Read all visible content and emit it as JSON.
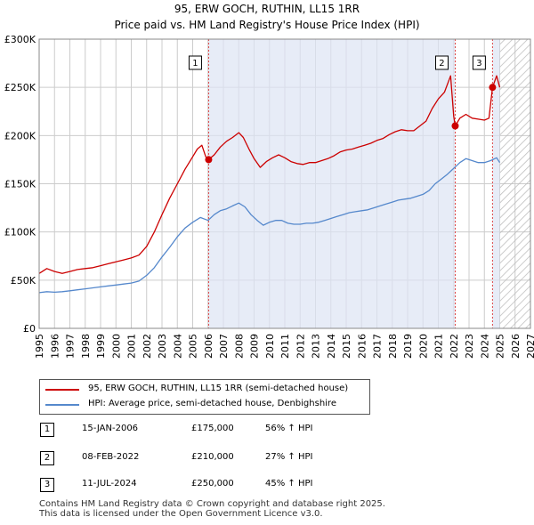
{
  "titles": {
    "line1": "95, ERW GOCH, RUTHIN, LL15 1RR",
    "line2": "Price paid vs. HM Land Registry's House Price Index (HPI)"
  },
  "chart_data": {
    "type": "line",
    "xlim": [
      1995,
      2027
    ],
    "ylim": [
      0,
      300000
    ],
    "y_ticks": [
      {
        "value": 0,
        "label": "£0"
      },
      {
        "value": 50000,
        "label": "£50K"
      },
      {
        "value": 100000,
        "label": "£100K"
      },
      {
        "value": 150000,
        "label": "£150K"
      },
      {
        "value": 200000,
        "label": "£200K"
      },
      {
        "value": 250000,
        "label": "£250K"
      },
      {
        "value": 300000,
        "label": "£300K"
      }
    ],
    "x_ticks": [
      "1995",
      "1996",
      "1997",
      "1998",
      "1999",
      "2000",
      "2001",
      "2002",
      "2003",
      "2004",
      "2005",
      "2006",
      "2007",
      "2008",
      "2009",
      "2010",
      "2011",
      "2012",
      "2013",
      "2014",
      "2015",
      "2016",
      "2017",
      "2018",
      "2019",
      "2020",
      "2021",
      "2022",
      "2023",
      "2024",
      "2025",
      "2026",
      "2027"
    ],
    "grid": true,
    "forecast_hatch_start": 2025.0,
    "series": [
      {
        "name": "95, ERW GOCH, RUTHIN, LL15 1RR (semi-detached house)",
        "color": "#cc0000",
        "points": [
          [
            1995.0,
            57000
          ],
          [
            1995.5,
            62000
          ],
          [
            1996.0,
            59000
          ],
          [
            1996.5,
            57000
          ],
          [
            1997.0,
            59000
          ],
          [
            1997.5,
            61000
          ],
          [
            1998.0,
            62000
          ],
          [
            1998.5,
            63000
          ],
          [
            1999.0,
            65000
          ],
          [
            1999.5,
            67000
          ],
          [
            2000.0,
            69000
          ],
          [
            2000.5,
            71000
          ],
          [
            2001.0,
            73000
          ],
          [
            2001.5,
            76000
          ],
          [
            2002.0,
            85000
          ],
          [
            2002.5,
            100000
          ],
          [
            2003.0,
            118000
          ],
          [
            2003.5,
            135000
          ],
          [
            2004.0,
            150000
          ],
          [
            2004.5,
            165000
          ],
          [
            2005.0,
            178000
          ],
          [
            2005.3,
            186000
          ],
          [
            2005.6,
            190000
          ],
          [
            2005.85,
            178000
          ],
          [
            2006.04,
            175000
          ],
          [
            2006.4,
            180000
          ],
          [
            2006.8,
            188000
          ],
          [
            2007.2,
            194000
          ],
          [
            2007.6,
            198000
          ],
          [
            2008.0,
            203000
          ],
          [
            2008.3,
            198000
          ],
          [
            2008.7,
            185000
          ],
          [
            2009.0,
            176000
          ],
          [
            2009.4,
            167000
          ],
          [
            2009.8,
            173000
          ],
          [
            2010.2,
            177000
          ],
          [
            2010.6,
            180000
          ],
          [
            2011.0,
            177000
          ],
          [
            2011.4,
            173000
          ],
          [
            2011.8,
            171000
          ],
          [
            2012.2,
            170000
          ],
          [
            2012.6,
            172000
          ],
          [
            2013.0,
            172000
          ],
          [
            2013.4,
            174000
          ],
          [
            2013.8,
            176000
          ],
          [
            2014.2,
            179000
          ],
          [
            2014.6,
            183000
          ],
          [
            2015.0,
            185000
          ],
          [
            2015.4,
            186000
          ],
          [
            2015.8,
            188000
          ],
          [
            2016.2,
            190000
          ],
          [
            2016.6,
            192000
          ],
          [
            2017.0,
            195000
          ],
          [
            2017.4,
            197000
          ],
          [
            2017.8,
            201000
          ],
          [
            2018.2,
            204000
          ],
          [
            2018.6,
            206000
          ],
          [
            2019.0,
            205000
          ],
          [
            2019.4,
            205000
          ],
          [
            2019.8,
            210000
          ],
          [
            2020.2,
            215000
          ],
          [
            2020.6,
            228000
          ],
          [
            2021.0,
            238000
          ],
          [
            2021.4,
            245000
          ],
          [
            2021.8,
            262000
          ],
          [
            2022.0,
            220000
          ],
          [
            2022.1,
            210000
          ],
          [
            2022.4,
            218000
          ],
          [
            2022.8,
            222000
          ],
          [
            2023.2,
            218000
          ],
          [
            2023.6,
            217000
          ],
          [
            2024.0,
            216000
          ],
          [
            2024.3,
            218000
          ],
          [
            2024.53,
            250000
          ],
          [
            2024.8,
            262000
          ],
          [
            2025.0,
            250000
          ]
        ]
      },
      {
        "name": "HPI: Average price, semi-detached house, Denbighshire",
        "color": "#5588cc",
        "points": [
          [
            1995.0,
            37000
          ],
          [
            1995.5,
            38000
          ],
          [
            1996.0,
            37500
          ],
          [
            1996.5,
            38000
          ],
          [
            1997.0,
            39000
          ],
          [
            1997.5,
            40000
          ],
          [
            1998.0,
            41000
          ],
          [
            1998.5,
            42000
          ],
          [
            1999.0,
            43000
          ],
          [
            1999.5,
            44000
          ],
          [
            2000.0,
            45000
          ],
          [
            2000.5,
            46000
          ],
          [
            2001.0,
            47000
          ],
          [
            2001.5,
            49000
          ],
          [
            2002.0,
            55000
          ],
          [
            2002.5,
            63000
          ],
          [
            2003.0,
            74000
          ],
          [
            2003.5,
            84000
          ],
          [
            2004.0,
            95000
          ],
          [
            2004.5,
            104000
          ],
          [
            2005.0,
            110000
          ],
          [
            2005.5,
            115000
          ],
          [
            2006.0,
            112000
          ],
          [
            2006.4,
            118000
          ],
          [
            2006.8,
            122000
          ],
          [
            2007.2,
            124000
          ],
          [
            2007.6,
            127000
          ],
          [
            2008.0,
            130000
          ],
          [
            2008.4,
            126000
          ],
          [
            2008.8,
            118000
          ],
          [
            2009.2,
            112000
          ],
          [
            2009.6,
            107000
          ],
          [
            2010.0,
            110000
          ],
          [
            2010.4,
            112000
          ],
          [
            2010.8,
            112000
          ],
          [
            2011.2,
            109000
          ],
          [
            2011.6,
            108000
          ],
          [
            2012.0,
            108000
          ],
          [
            2012.4,
            109000
          ],
          [
            2012.8,
            109000
          ],
          [
            2013.2,
            110000
          ],
          [
            2013.6,
            112000
          ],
          [
            2014.0,
            114000
          ],
          [
            2014.4,
            116000
          ],
          [
            2014.8,
            118000
          ],
          [
            2015.2,
            120000
          ],
          [
            2015.6,
            121000
          ],
          [
            2016.0,
            122000
          ],
          [
            2016.4,
            123000
          ],
          [
            2016.8,
            125000
          ],
          [
            2017.2,
            127000
          ],
          [
            2017.6,
            129000
          ],
          [
            2018.0,
            131000
          ],
          [
            2018.4,
            133000
          ],
          [
            2018.8,
            134000
          ],
          [
            2019.2,
            135000
          ],
          [
            2019.6,
            137000
          ],
          [
            2020.0,
            139000
          ],
          [
            2020.4,
            143000
          ],
          [
            2020.8,
            150000
          ],
          [
            2021.2,
            155000
          ],
          [
            2021.6,
            160000
          ],
          [
            2022.0,
            166000
          ],
          [
            2022.4,
            172000
          ],
          [
            2022.8,
            176000
          ],
          [
            2023.2,
            174000
          ],
          [
            2023.6,
            172000
          ],
          [
            2024.0,
            172000
          ],
          [
            2024.4,
            174000
          ],
          [
            2024.8,
            177000
          ],
          [
            2025.0,
            172000
          ]
        ]
      }
    ],
    "sales": [
      {
        "label": "1",
        "x": 2006.04,
        "price": 175000
      },
      {
        "label": "2",
        "x": 2022.1,
        "price": 210000
      },
      {
        "label": "3",
        "x": 2024.53,
        "price": 250000
      }
    ]
  },
  "legend": {
    "property": "95, ERW GOCH, RUTHIN, LL15 1RR (semi-detached house)",
    "hpi": "HPI: Average price, semi-detached house, Denbighshire",
    "property_color": "#cc0000",
    "hpi_color": "#5588cc"
  },
  "transactions": [
    {
      "num": "1",
      "date": "15-JAN-2006",
      "price": "£175,000",
      "hpi": "56% ↑ HPI"
    },
    {
      "num": "2",
      "date": "08-FEB-2022",
      "price": "£210,000",
      "hpi": "27% ↑ HPI"
    },
    {
      "num": "3",
      "date": "11-JUL-2024",
      "price": "£250,000",
      "hpi": "45% ↑ HPI"
    }
  ],
  "footer": {
    "line1": "Contains HM Land Registry data © Crown copyright and database right 2025.",
    "line2": "This data is licensed under the Open Government Licence v3.0."
  }
}
